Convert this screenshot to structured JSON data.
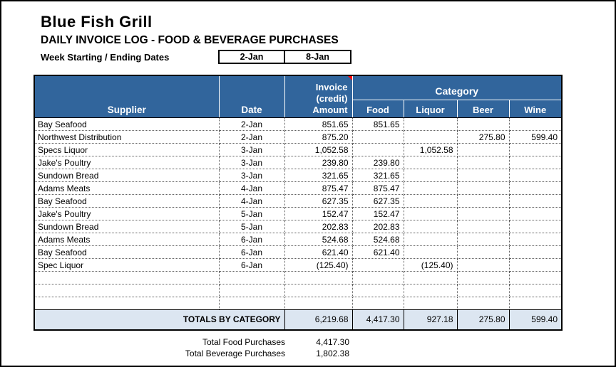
{
  "header": {
    "title": "Blue Fish Grill",
    "subtitle": "DAILY INVOICE LOG - FOOD & BEVERAGE PURCHASES",
    "week_label": "Week Starting / Ending Dates",
    "week_start": "2-Jan",
    "week_end": "8-Jan"
  },
  "table": {
    "headers": {
      "supplier": "Supplier",
      "date": "Date",
      "invoice_amount": "Invoice\n(credit)\nAmount",
      "category": "Category",
      "food": "Food",
      "liquor": "Liquor",
      "beer": "Beer",
      "wine": "Wine"
    },
    "rows": [
      {
        "supplier": "Bay Seafood",
        "date": "2-Jan",
        "amount": "851.65",
        "food": "851.65",
        "liquor": "",
        "beer": "",
        "wine": ""
      },
      {
        "supplier": "Northwest Distribution",
        "date": "2-Jan",
        "amount": "875.20",
        "food": "",
        "liquor": "",
        "beer": "275.80",
        "wine": "599.40"
      },
      {
        "supplier": "Specs Liquor",
        "date": "3-Jan",
        "amount": "1,052.58",
        "food": "",
        "liquor": "1,052.58",
        "beer": "",
        "wine": ""
      },
      {
        "supplier": "Jake's Poultry",
        "date": "3-Jan",
        "amount": "239.80",
        "food": "239.80",
        "liquor": "",
        "beer": "",
        "wine": ""
      },
      {
        "supplier": "Sundown Bread",
        "date": "3-Jan",
        "amount": "321.65",
        "food": "321.65",
        "liquor": "",
        "beer": "",
        "wine": ""
      },
      {
        "supplier": "Adams Meats",
        "date": "4-Jan",
        "amount": "875.47",
        "food": "875.47",
        "liquor": "",
        "beer": "",
        "wine": ""
      },
      {
        "supplier": "Bay Seafood",
        "date": "4-Jan",
        "amount": "627.35",
        "food": "627.35",
        "liquor": "",
        "beer": "",
        "wine": ""
      },
      {
        "supplier": "Jake's Poultry",
        "date": "5-Jan",
        "amount": "152.47",
        "food": "152.47",
        "liquor": "",
        "beer": "",
        "wine": ""
      },
      {
        "supplier": "Sundown Bread",
        "date": "5-Jan",
        "amount": "202.83",
        "food": "202.83",
        "liquor": "",
        "beer": "",
        "wine": ""
      },
      {
        "supplier": "Adams Meats",
        "date": "6-Jan",
        "amount": "524.68",
        "food": "524.68",
        "liquor": "",
        "beer": "",
        "wine": ""
      },
      {
        "supplier": "Bay Seafood",
        "date": "6-Jan",
        "amount": "621.40",
        "food": "621.40",
        "liquor": "",
        "beer": "",
        "wine": ""
      },
      {
        "supplier": "Spec Liquor",
        "date": "6-Jan",
        "amount": "(125.40)",
        "food": "",
        "liquor": "(125.40)",
        "beer": "",
        "wine": ""
      }
    ],
    "empty_rows": 3,
    "totals": {
      "label": "TOTALS BY CATEGORY",
      "amount": "6,219.68",
      "food": "4,417.30",
      "liquor": "927.18",
      "beer": "275.80",
      "wine": "599.40"
    }
  },
  "summary": {
    "rows": [
      {
        "label": "Total Food Purchases",
        "value": "4,417.30"
      },
      {
        "label": "Total Beverage Purchases",
        "value": "1,802.38"
      }
    ]
  },
  "colors": {
    "header_bg": "#31659C",
    "totals_bg": "#DCE6F1",
    "negative_text": "#FF0000",
    "comment_marker": "#FF0000"
  }
}
